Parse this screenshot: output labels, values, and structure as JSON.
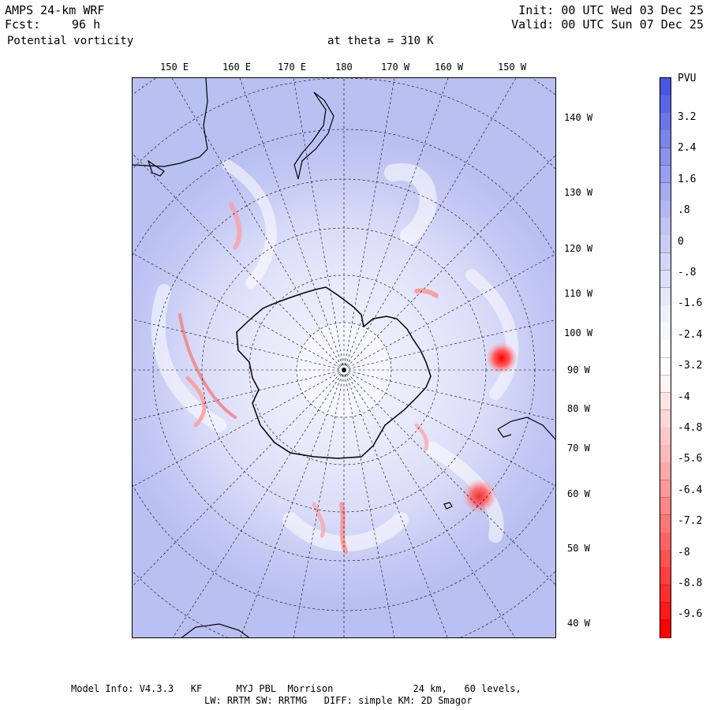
{
  "header": {
    "model": "AMPS 24-km WRF",
    "forecast_label": "Fcst:",
    "forecast_value": "96 h",
    "field": "Potential vorticity",
    "level": "at theta = 310 K",
    "init": "Init: 00 UTC Wed 03 Dec 25",
    "valid": "Valid: 00 UTC Sun 07 Dec 25"
  },
  "map": {
    "top_longitude_labels": [
      "150 E",
      "160 E",
      "170 E",
      "180",
      "170 W",
      "160 W",
      "150 W"
    ],
    "right_longitude_labels": [
      "140 W",
      "130 W",
      "120 W",
      "110 W",
      "100 W",
      "90 W",
      "80 W",
      "70 W",
      "60 W",
      "50 W",
      "40 W"
    ],
    "colors": {
      "background": "#b9c0f2",
      "land_outline": "#000000",
      "grid": "#000000",
      "positive_pv": "#4a55e0",
      "negative_pv": "#f00000",
      "neutral": "#ffffff"
    }
  },
  "colorbar": {
    "unit": "PVU",
    "labels": [
      "3.2",
      "2.4",
      "1.6",
      ".8",
      "0",
      "-.8",
      "-1.6",
      "-2.4",
      "-3.2",
      "-4",
      "-4.8",
      "-5.6",
      "-6.4",
      "-7.2",
      "-8",
      "-8.8",
      "-9.6"
    ],
    "colors_top_to_bottom": [
      "#4a55e0",
      "#5a65e3",
      "#6a75e6",
      "#7a84e9",
      "#8992ec",
      "#979fee",
      "#a5acf0",
      "#b2b8f2",
      "#bec3f4",
      "#c9cdf6",
      "#d3d6f8",
      "#dcdff9",
      "#e5e7fb",
      "#eeeffc",
      "#f6f6fe",
      "#ffffff",
      "#ffffff",
      "#fff2f2",
      "#ffe4e4",
      "#ffd6d6",
      "#ffc7c7",
      "#ffb8b8",
      "#ffa8a8",
      "#ff9898",
      "#ff8787",
      "#ff7676",
      "#ff6464",
      "#ff5252",
      "#ff3f3f",
      "#ff2c2c",
      "#ff1818",
      "#ff0000"
    ]
  },
  "footer": {
    "line1": "Model Info: V4.3.3   KF      MYJ PBL  Morrison              24 km,   60 levels,",
    "line2": "LW: RRTM SW: RRTMG   DIFF: simple KM: 2D Smagor"
  }
}
